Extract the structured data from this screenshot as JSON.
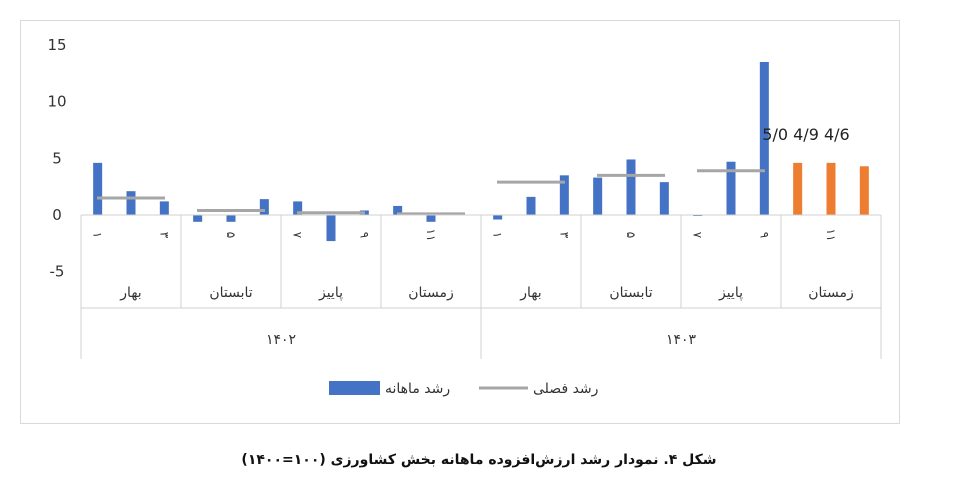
{
  "caption": "شکل ۴. نمودار رشد ارزش‌افزوده ماهانه بخش کشاورزی (۱۰۰=۱۴۰۰)",
  "annotation": "5/0 4/9 4/6",
  "chart_data": {
    "type": "bar",
    "yticks": [
      "15",
      "10",
      "5",
      "0",
      "-5"
    ],
    "ylim": [
      -5,
      15
    ],
    "grid": false,
    "legend_position": "bottom",
    "legend": [
      {
        "label": "رشد ماهانه",
        "color": "#4472c4",
        "kind": "bar"
      },
      {
        "label": "رشد فصلی",
        "color": "#a6a6a6",
        "kind": "line"
      }
    ],
    "years": [
      {
        "label": "۱۴۰۲",
        "seasons": [
          {
            "label": "بهار",
            "months": [
              {
                "label": "۱",
                "value": 4.6
              },
              {
                "label": "",
                "value": 2.1
              },
              {
                "label": "۳",
                "value": 1.2
              }
            ],
            "seasonal": 1.5
          },
          {
            "label": "تابستان",
            "months": [
              {
                "label": "",
                "value": -0.6
              },
              {
                "label": "۵",
                "value": -0.6
              },
              {
                "label": "",
                "value": 1.4
              }
            ],
            "seasonal": 0.4
          },
          {
            "label": "پاییز",
            "months": [
              {
                "label": "۷",
                "value": 1.2
              },
              {
                "label": "",
                "value": -2.3
              },
              {
                "label": "۹",
                "value": 0.4
              }
            ],
            "seasonal": 0.2
          },
          {
            "label": "زمستان",
            "months": [
              {
                "label": "",
                "value": 0.8
              },
              {
                "label": "۱۱",
                "value": -0.6
              },
              {
                "label": "",
                "value": null
              }
            ],
            "seasonal": 0.1
          }
        ]
      },
      {
        "label": "۱۴۰۳",
        "seasons": [
          {
            "label": "بهار",
            "months": [
              {
                "label": "۱",
                "value": -0.4
              },
              {
                "label": "",
                "value": 1.6
              },
              {
                "label": "۳",
                "value": 3.5
              }
            ],
            "seasonal": 2.9
          },
          {
            "label": "تابستان",
            "months": [
              {
                "label": "",
                "value": 3.3
              },
              {
                "label": "۵",
                "value": 4.9
              },
              {
                "label": "",
                "value": 2.9
              }
            ],
            "seasonal": 3.5
          },
          {
            "label": "پاییز",
            "months": [
              {
                "label": "۷",
                "value": 0.0
              },
              {
                "label": "",
                "value": 4.7
              },
              {
                "label": "۹",
                "value": 13.5
              }
            ],
            "seasonal": 3.9
          },
          {
            "label": "زمستان",
            "months": [
              {
                "label": "",
                "value": 4.6
              },
              {
                "label": "۱۱",
                "value": 4.6
              },
              {
                "label": "",
                "value": 4.3
              }
            ],
            "seasonal": null,
            "highlight_color": "#ed7d31"
          }
        ]
      }
    ]
  }
}
